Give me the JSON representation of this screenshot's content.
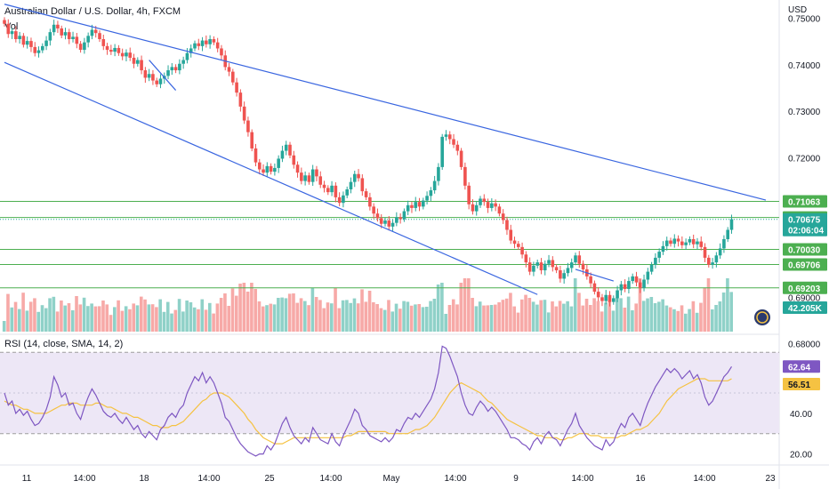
{
  "header": {
    "symbol_title": "Australian Dollar / U.S. Dollar, 4h, FXCM",
    "volume_label": "Vol",
    "currency": "USD"
  },
  "rsi_legend": "RSI (14, close, SMA, 14, 2)",
  "colors": {
    "up": "#26a69a",
    "down": "#ef5350",
    "vol_up": "#8fd1c8",
    "vol_down": "#f7a9a7",
    "trendline": "#3a66e0",
    "level": "#4caf50",
    "rsi": "#7e57c2",
    "rsi_ma": "#f5c242",
    "rsi_band": "#ede7f6"
  },
  "chart_data": [
    {
      "type": "candlestick",
      "title": "Australian Dollar / U.S. Dollar, 4h, FXCM",
      "y_ticks": [
        "0.75000",
        "0.74000",
        "0.73000",
        "0.72000",
        "0.69000",
        "0.68000"
      ],
      "ylim": [
        0.683,
        0.752
      ],
      "x_ticks": [
        "11",
        "14:00",
        "18",
        "14:00",
        "25",
        "14:00",
        "May",
        "14:00",
        "9",
        "14:00",
        "16",
        "14:00",
        "23"
      ],
      "price_levels": [
        {
          "label": "0.71063",
          "value": 0.71063,
          "style": "level"
        },
        {
          "label": "0.70715",
          "value": 0.70715,
          "style": "level"
        },
        {
          "label": "0.70675",
          "value": 0.70675,
          "style": "current",
          "countdown": "02:06:04"
        },
        {
          "label": "0.70030",
          "value": 0.7003,
          "style": "level"
        },
        {
          "label": "0.69706",
          "value": 0.69706,
          "style": "level"
        },
        {
          "label": "0.69203",
          "value": 0.69203,
          "style": "level"
        }
      ],
      "trendlines": [
        {
          "from": [
            0,
            0.753
          ],
          "to": [
            200,
            0.7109
          ]
        },
        {
          "from": [
            0,
            0.7405
          ],
          "to": [
            140,
            0.6906
          ]
        },
        {
          "from": [
            38,
            0.741
          ],
          "to": [
            45,
            0.7345
          ]
        },
        {
          "from": [
            150,
            0.696
          ],
          "to": [
            160,
            0.6935
          ]
        }
      ],
      "closes": [
        0.7488,
        0.7466,
        0.7472,
        0.7455,
        0.7462,
        0.7443,
        0.7451,
        0.7438,
        0.7425,
        0.7431,
        0.744,
        0.7452,
        0.747,
        0.7486,
        0.7478,
        0.7463,
        0.747,
        0.7455,
        0.746,
        0.7445,
        0.7432,
        0.7448,
        0.7462,
        0.7475,
        0.7468,
        0.7455,
        0.744,
        0.7432,
        0.7428,
        0.7436,
        0.7425,
        0.7418,
        0.7426,
        0.7415,
        0.7402,
        0.741,
        0.7388,
        0.7372,
        0.738,
        0.7366,
        0.7358,
        0.737,
        0.7376,
        0.7388,
        0.7395,
        0.7388,
        0.7402,
        0.741,
        0.7425,
        0.7435,
        0.7446,
        0.744,
        0.7452,
        0.7444,
        0.7455,
        0.7448,
        0.7435,
        0.742,
        0.7395,
        0.7385,
        0.7362,
        0.734,
        0.731,
        0.728,
        0.7255,
        0.722,
        0.719,
        0.7175,
        0.7168,
        0.7182,
        0.717,
        0.7178,
        0.7198,
        0.7215,
        0.7228,
        0.7205,
        0.7185,
        0.7168,
        0.715,
        0.7162,
        0.7148,
        0.7175,
        0.716,
        0.7142,
        0.7135,
        0.7126,
        0.714,
        0.7115,
        0.7103,
        0.7119,
        0.7132,
        0.7148,
        0.7165,
        0.7156,
        0.7128,
        0.7115,
        0.7095,
        0.708,
        0.707,
        0.7058,
        0.7065,
        0.7052,
        0.706,
        0.7072,
        0.7068,
        0.7085,
        0.7098,
        0.7092,
        0.7105,
        0.7095,
        0.7108,
        0.7118,
        0.713,
        0.715,
        0.718,
        0.7245,
        0.725,
        0.724,
        0.7228,
        0.7215,
        0.718,
        0.714,
        0.71,
        0.7085,
        0.7098,
        0.7112,
        0.7105,
        0.7092,
        0.7102,
        0.7095,
        0.708,
        0.7066,
        0.7045,
        0.7022,
        0.7015,
        0.7008,
        0.6992,
        0.6975,
        0.6955,
        0.6968,
        0.6975,
        0.6958,
        0.6972,
        0.698,
        0.6965,
        0.6958,
        0.694,
        0.6952,
        0.6963,
        0.6975,
        0.699,
        0.6972,
        0.696,
        0.6945,
        0.693,
        0.6912,
        0.69,
        0.6892,
        0.6905,
        0.689,
        0.6898,
        0.6915,
        0.6928,
        0.6918,
        0.6935,
        0.6945,
        0.6932,
        0.692,
        0.6938,
        0.6955,
        0.697,
        0.6985,
        0.6998,
        0.701,
        0.7022,
        0.7015,
        0.7026,
        0.702,
        0.7012,
        0.7018,
        0.7025,
        0.7014,
        0.702,
        0.7008,
        0.6985,
        0.697,
        0.6975,
        0.699,
        0.7005,
        0.7025,
        0.7045,
        0.7068
      ],
      "volume_label": "42.205K"
    },
    {
      "type": "line",
      "title": "RSI (14, close, SMA, 14, 2)",
      "y_ticks": [
        "40.00",
        "20.00"
      ],
      "ylim": [
        15,
        78
      ],
      "band": [
        30,
        70
      ],
      "series": [
        {
          "name": "",
          "color": "rsi",
          "last_label": "62.64"
        },
        {
          "name": "",
          "color": "rsi_ma",
          "last_label": "56.51"
        }
      ],
      "rsi_values": [
        50,
        44,
        46,
        40,
        42,
        39,
        41,
        37,
        34,
        35,
        38,
        42,
        48,
        58,
        54,
        48,
        50,
        44,
        45,
        40,
        37,
        43,
        48,
        52,
        49,
        45,
        41,
        39,
        38,
        40,
        37,
        35,
        38,
        35,
        32,
        34,
        30,
        28,
        31,
        29,
        27,
        32,
        34,
        38,
        40,
        38,
        42,
        44,
        50,
        54,
        58,
        56,
        60,
        55,
        58,
        55,
        50,
        45,
        38,
        36,
        32,
        28,
        25,
        23,
        21,
        20,
        19,
        20,
        20,
        24,
        22,
        25,
        30,
        35,
        38,
        33,
        29,
        27,
        25,
        28,
        26,
        33,
        30,
        27,
        26,
        25,
        30,
        26,
        24,
        29,
        33,
        37,
        42,
        40,
        34,
        32,
        29,
        28,
        27,
        26,
        28,
        26,
        28,
        32,
        31,
        35,
        38,
        37,
        40,
        38,
        41,
        44,
        47,
        52,
        60,
        73,
        72,
        68,
        63,
        58,
        50,
        44,
        40,
        39,
        43,
        46,
        44,
        41,
        43,
        41,
        38,
        35,
        32,
        28,
        28,
        27,
        25,
        24,
        22,
        26,
        28,
        25,
        29,
        31,
        28,
        27,
        24,
        28,
        32,
        35,
        40,
        34,
        31,
        28,
        26,
        24,
        23,
        22,
        27,
        24,
        26,
        31,
        35,
        33,
        38,
        40,
        37,
        34,
        40,
        45,
        49,
        53,
        56,
        59,
        62,
        60,
        62,
        60,
        57,
        59,
        61,
        57,
        59,
        55,
        48,
        44,
        46,
        50,
        54,
        58,
        60,
        63
      ],
      "rsi_ma_values": [
        46,
        45,
        44,
        44,
        43,
        42,
        42,
        41,
        40,
        40,
        40,
        40,
        41,
        42,
        43,
        44,
        44,
        45,
        45,
        45,
        44,
        44,
        44,
        44,
        45,
        45,
        44,
        43,
        43,
        42,
        41,
        40,
        40,
        39,
        38,
        38,
        37,
        36,
        35,
        34,
        34,
        33,
        33,
        33,
        34,
        34,
        35,
        36,
        38,
        40,
        42,
        44,
        46,
        47,
        49,
        50,
        50,
        50,
        49,
        48,
        46,
        44,
        42,
        40,
        37,
        35,
        32,
        30,
        28,
        27,
        26,
        25,
        25,
        25,
        26,
        27,
        28,
        28,
        28,
        28,
        28,
        28,
        28,
        28,
        28,
        28,
        28,
        28,
        28,
        28,
        29,
        29,
        30,
        31,
        31,
        31,
        31,
        31,
        31,
        31,
        31,
        30,
        30,
        30,
        30,
        30,
        30,
        31,
        32,
        32,
        33,
        34,
        36,
        38,
        41,
        44,
        47,
        50,
        52,
        54,
        55,
        54,
        53,
        52,
        51,
        50,
        48,
        46,
        45,
        43,
        41,
        39,
        37,
        36,
        35,
        34,
        33,
        32,
        31,
        30,
        29,
        29,
        28,
        28,
        28,
        28,
        27,
        27,
        28,
        28,
        29,
        30,
        30,
        30,
        29,
        29,
        29,
        28,
        28,
        28,
        28,
        28,
        29,
        29,
        30,
        31,
        32,
        32,
        33,
        34,
        36,
        38,
        40,
        43,
        46,
        48,
        50,
        52,
        53,
        54,
        55,
        56,
        57,
        57,
        57,
        56,
        56,
        56,
        56,
        56,
        56,
        57
      ]
    }
  ]
}
